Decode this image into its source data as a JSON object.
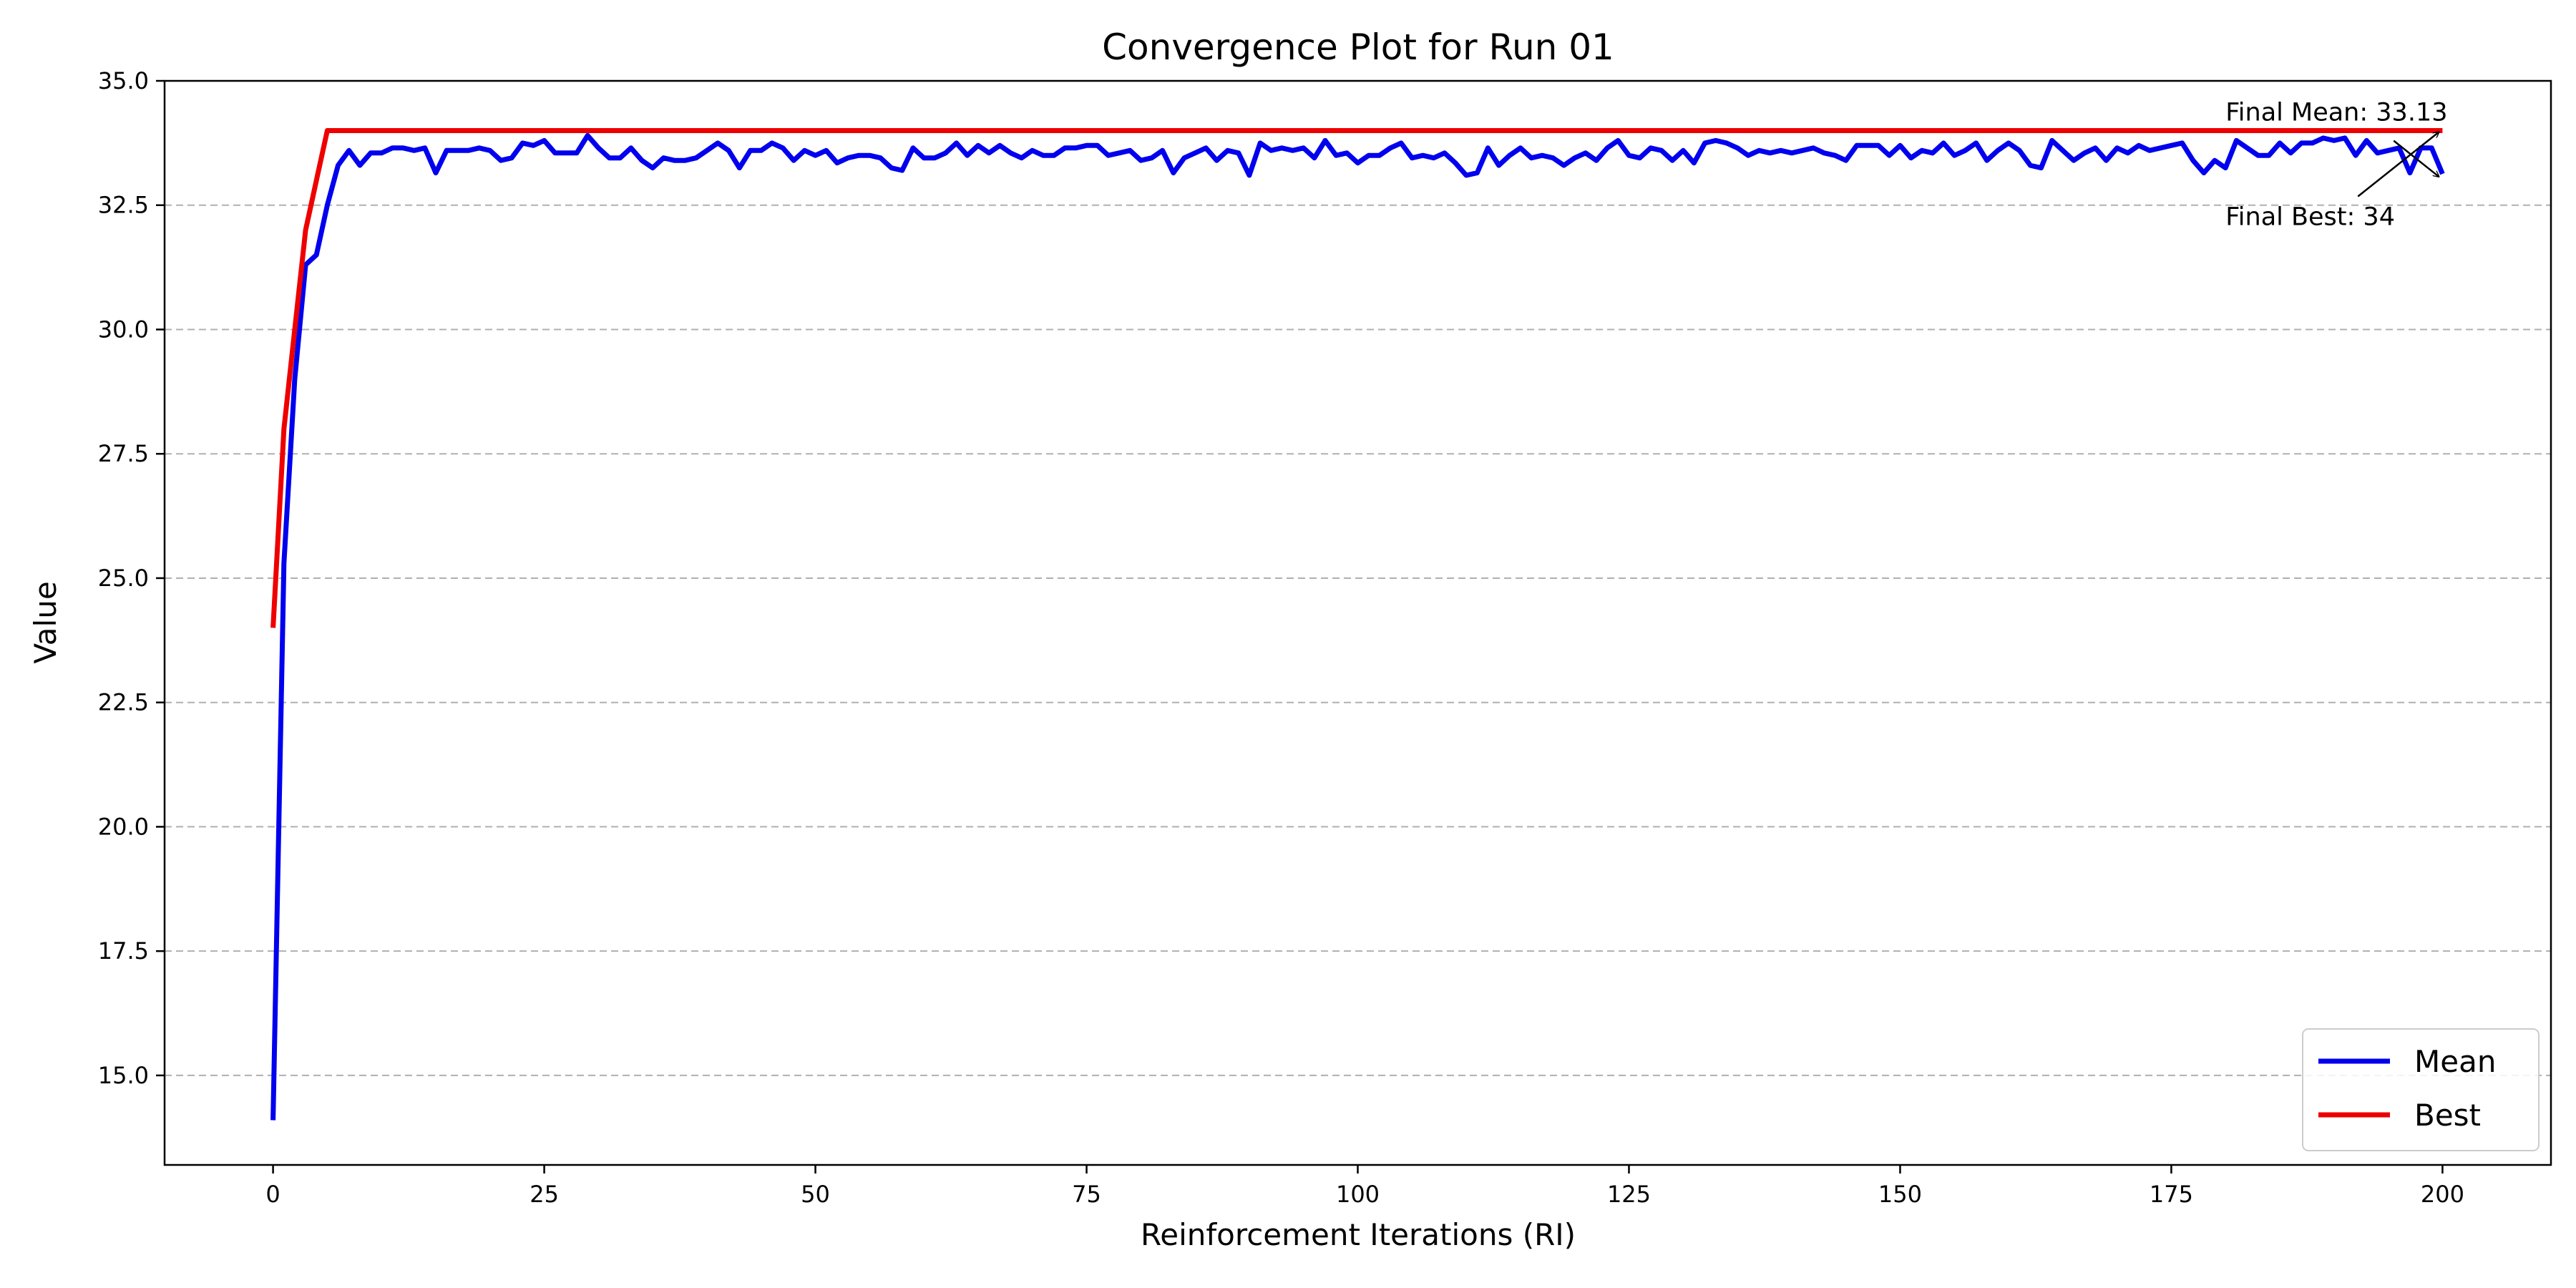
{
  "chart_data": {
    "type": "line",
    "title": "Convergence Plot for Run 01",
    "xlabel": "Reinforcement Iterations (RI)",
    "ylabel": "Value",
    "xlim": [
      -10,
      210
    ],
    "ylim": [
      13.2,
      35.0
    ],
    "xticks": [
      0,
      25,
      50,
      75,
      100,
      125,
      150,
      175,
      200
    ],
    "yticks": [
      15.0,
      17.5,
      20.0,
      22.5,
      25.0,
      27.5,
      30.0,
      32.5,
      35.0
    ],
    "xtick_labels": [
      "0",
      "25",
      "50",
      "75",
      "100",
      "125",
      "150",
      "175",
      "200"
    ],
    "ytick_labels": [
      "15.0",
      "17.5",
      "20.0",
      "22.5",
      "25.0",
      "27.5",
      "30.0",
      "32.5",
      "35.0"
    ],
    "grid": "horizontal dashed",
    "legend_position": "lower-right",
    "legend": [
      "Mean",
      "Best"
    ],
    "series": [
      {
        "name": "Mean",
        "color": "#0000ee",
        "values": [
          14.1,
          25.3,
          29.0,
          31.3,
          31.5,
          32.5,
          33.3,
          33.6,
          33.3,
          33.55,
          33.55,
          33.65,
          33.65,
          33.6,
          33.65,
          33.15,
          33.6,
          33.6,
          33.6,
          33.65,
          33.6,
          33.4,
          33.45,
          33.75,
          33.7,
          33.8,
          33.55,
          33.55,
          33.55,
          33.9,
          33.65,
          33.45,
          33.45,
          33.65,
          33.4,
          33.25,
          33.45,
          33.4,
          33.4,
          33.45,
          33.6,
          33.75,
          33.6,
          33.25,
          33.6,
          33.6,
          33.75,
          33.65,
          33.4,
          33.6,
          33.5,
          33.6,
          33.35,
          33.45,
          33.5,
          33.5,
          33.45,
          33.25,
          33.2,
          33.65,
          33.45,
          33.45,
          33.55,
          33.75,
          33.5,
          33.7,
          33.55,
          33.7,
          33.55,
          33.45,
          33.6,
          33.5,
          33.5,
          33.65,
          33.65,
          33.7,
          33.7,
          33.5,
          33.55,
          33.6,
          33.4,
          33.45,
          33.6,
          33.15,
          33.45,
          33.55,
          33.65,
          33.4,
          33.6,
          33.55,
          33.1,
          33.75,
          33.6,
          33.65,
          33.6,
          33.65,
          33.45,
          33.8,
          33.5,
          33.55,
          33.35,
          33.5,
          33.5,
          33.65,
          33.75,
          33.45,
          33.5,
          33.45,
          33.55,
          33.35,
          33.1,
          33.15,
          33.65,
          33.3,
          33.5,
          33.65,
          33.45,
          33.5,
          33.45,
          33.3,
          33.45,
          33.55,
          33.4,
          33.65,
          33.8,
          33.5,
          33.45,
          33.65,
          33.6,
          33.4,
          33.6,
          33.35,
          33.75,
          33.8,
          33.75,
          33.65,
          33.5,
          33.6,
          33.55,
          33.6,
          33.55,
          33.6,
          33.65,
          33.55,
          33.5,
          33.4,
          33.7,
          33.7,
          33.7,
          33.5,
          33.7,
          33.45,
          33.6,
          33.55,
          33.75,
          33.5,
          33.6,
          33.75,
          33.4,
          33.6,
          33.75,
          33.6,
          33.3,
          33.25,
          33.8,
          33.6,
          33.4,
          33.55,
          33.65,
          33.4,
          33.65,
          33.55,
          33.7,
          33.6,
          33.65,
          33.7,
          33.75,
          33.4,
          33.15,
          33.4,
          33.25,
          33.8,
          33.65,
          33.5,
          33.5,
          33.75,
          33.55,
          33.75,
          33.75,
          33.85,
          33.8,
          33.85,
          33.5,
          33.8,
          33.55,
          33.6,
          33.65,
          33.15,
          33.65,
          33.65,
          33.13
        ]
      },
      {
        "name": "Best",
        "color": "#ee0000",
        "x": [
          0,
          1,
          2,
          3,
          4,
          5,
          200
        ],
        "values": [
          24.0,
          28.0,
          30.0,
          32.0,
          33.0,
          34.0,
          34.0
        ]
      }
    ],
    "annotations": [
      {
        "text": "Final Mean: 33.13",
        "x": 200,
        "y": 33.13,
        "text_x": 180,
        "text_y": 34.2
      },
      {
        "text": "Final Best: 34",
        "x": 200,
        "y": 34.0,
        "text_x": 180,
        "text_y": 32.1
      }
    ]
  }
}
